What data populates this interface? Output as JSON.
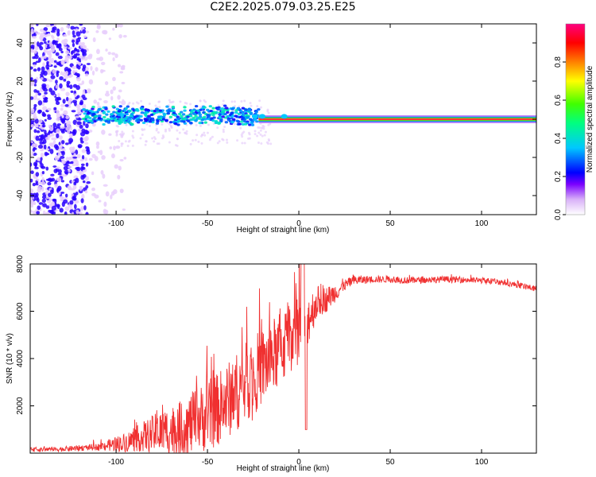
{
  "title": "C2E2.2025.079.03.25.E25",
  "chart_data": [
    {
      "type": "heatmap",
      "xlabel": "Height of straight line (km)",
      "ylabel": "Frequency (Hz)",
      "xlim": [
        -147,
        130
      ],
      "ylim": [
        -50,
        50
      ],
      "xticks": [
        -100,
        -50,
        0,
        50,
        100
      ],
      "yticks": [
        -40,
        -20,
        0,
        20,
        40
      ],
      "colorbar": {
        "label": "Normalized spectral amplitude",
        "range": [
          0,
          1
        ],
        "ticks": [
          0,
          0.2,
          0.4,
          0.6,
          0.8
        ],
        "tick_labels": [
          "0.0",
          "0.2",
          "0.4",
          "0.6",
          "0.8"
        ],
        "colors": [
          "#ffffff",
          "#d8b0f8",
          "#7a00ff",
          "#0000ff",
          "#00c8ff",
          "#00ff80",
          "#40ff00",
          "#ffff00",
          "#ff8000",
          "#ff0000",
          "#ff0080"
        ]
      },
      "features": {
        "broadband_noise_x_range": [
          -147,
          -95
        ],
        "noise_colour_levels": [
          0.05,
          0.15
        ],
        "core_signal": {
          "x_range": [
            -118,
            -22
          ],
          "freq_center": 2,
          "freq_halfwidth": 3,
          "levels": [
            0.2,
            0.45
          ]
        },
        "narrow_line": {
          "x_range": [
            -22,
            130
          ],
          "freq_center": 0,
          "levels": [
            0.1,
            0.3,
            0.55,
            0.8,
            0.98
          ]
        }
      }
    },
    {
      "type": "line",
      "xlabel": "Height of straight line (km)",
      "ylabel": "SNR (10 * v/v)",
      "xlim": [
        -147,
        130
      ],
      "ylim": [
        0,
        8000
      ],
      "xticks": [
        -100,
        -50,
        0,
        50,
        100
      ],
      "yticks": [
        2000,
        4000,
        6000,
        8000
      ],
      "series_color": "#f03030",
      "envelope": {
        "x": [
          -147,
          -130,
          -110,
          -95,
          -85,
          -75,
          -65,
          -55,
          -45,
          -38,
          -30,
          -22,
          -15,
          -8,
          -3,
          2,
          5,
          10,
          15,
          20,
          25,
          30,
          40,
          50,
          60,
          80,
          100,
          110,
          120,
          130
        ],
        "y": [
          150,
          170,
          260,
          450,
          700,
          900,
          1000,
          1400,
          1800,
          2300,
          2900,
          3500,
          4000,
          4600,
          5200,
          5400,
          5700,
          6400,
          6500,
          6800,
          7100,
          7300,
          7350,
          7350,
          7300,
          7350,
          7300,
          7250,
          7100,
          6950
        ]
      },
      "noise_amplitude": {
        "x": [
          -147,
          -110,
          -90,
          -70,
          -50,
          -30,
          -10,
          0,
          10,
          25,
          40,
          130
        ],
        "y": [
          80,
          140,
          500,
          1100,
          1500,
          1700,
          1600,
          1600,
          700,
          250,
          150,
          120
        ]
      }
    }
  ]
}
